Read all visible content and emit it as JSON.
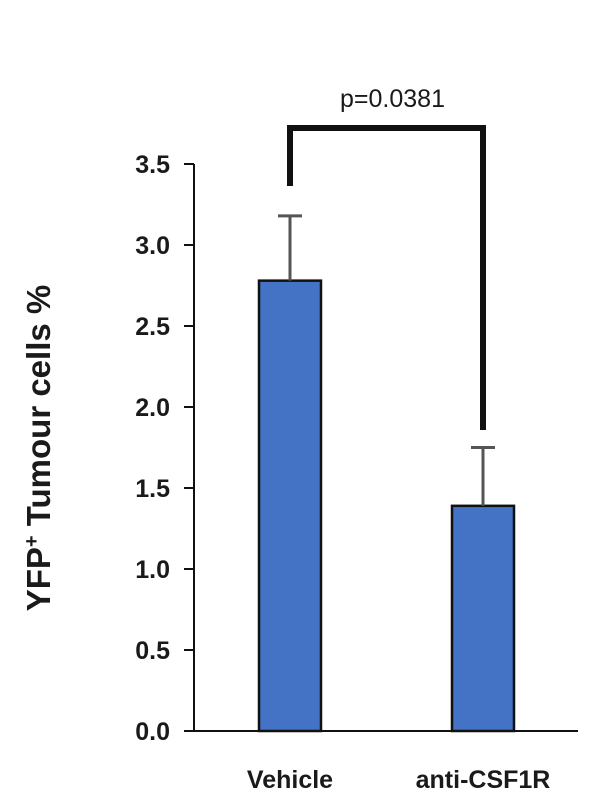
{
  "chart_data": {
    "type": "bar",
    "categories": [
      "Vehicle",
      "anti-CSF1R"
    ],
    "values": [
      2.78,
      1.39
    ],
    "error_upper": [
      0.4,
      0.36
    ],
    "ylabel_main": "YFP",
    "ylabel_sup": "+",
    "ylabel_rest": " Tumour cells %",
    "ylim": [
      0,
      3.5
    ],
    "yticks": [
      "0.0",
      "0.5",
      "1.0",
      "1.5",
      "2.0",
      "2.5",
      "3.0",
      "3.5"
    ],
    "ytick_values": [
      0,
      0.5,
      1.0,
      1.5,
      2.0,
      2.5,
      3.0,
      3.5
    ],
    "bar_color": "#4472C4",
    "significance": {
      "label": "p=0.0381",
      "between": [
        0,
        1
      ]
    },
    "grid": false,
    "legend": "none"
  }
}
